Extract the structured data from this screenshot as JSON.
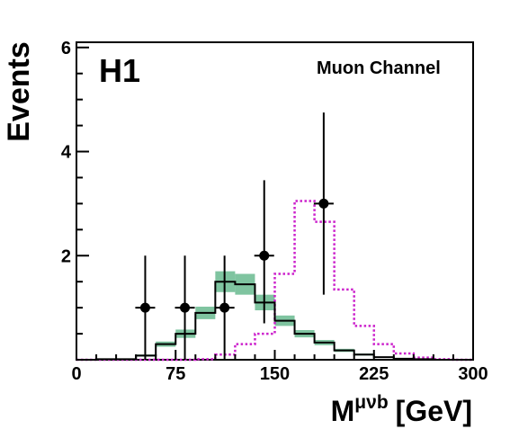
{
  "chart_data": {
    "type": "histogram",
    "experiment_label": "H1",
    "channel_label": "Muon Channel",
    "ylabel": "Events",
    "xlabel": {
      "main": "M",
      "superscript": "μνb",
      "unit": "[GeV]"
    },
    "xlim": [
      0,
      300
    ],
    "ylim": [
      0,
      6.1
    ],
    "x_ticks": [
      0,
      75,
      150,
      225,
      300
    ],
    "y_ticks": [
      2,
      4,
      6
    ],
    "bin_edges": [
      0,
      15,
      30,
      45,
      60,
      75,
      90,
      105,
      120,
      135,
      150,
      165,
      180,
      195,
      210,
      225,
      240,
      255,
      270,
      285,
      300
    ],
    "series": [
      {
        "kind": "sm_expectation",
        "style": "solid-black-histogram",
        "values": [
          0.0,
          0.01,
          0.01,
          0.08,
          0.3,
          0.5,
          0.9,
          1.5,
          1.45,
          1.1,
          0.75,
          0.5,
          0.33,
          0.18,
          0.1,
          0.05,
          0.02,
          0.01,
          0.0,
          0.0
        ],
        "error_band_color": "#7fc4a0",
        "error_band": [
          0.0,
          0.0,
          0.0,
          0.02,
          0.05,
          0.08,
          0.12,
          0.2,
          0.2,
          0.15,
          0.1,
          0.07,
          0.05,
          0.03,
          0.02,
          0.01,
          0.0,
          0.0,
          0.0,
          0.0
        ]
      },
      {
        "kind": "signal_hypothesis",
        "style": "dotted-magenta-histogram",
        "color": "#cc22cc",
        "values": [
          0.0,
          0.0,
          0.0,
          0.0,
          0.0,
          0.0,
          0.01,
          0.1,
          0.3,
          0.5,
          1.65,
          3.05,
          2.65,
          1.35,
          0.65,
          0.3,
          0.12,
          0.04,
          0.01,
          0.0
        ]
      },
      {
        "kind": "data",
        "style": "black-points-with-errors",
        "points": [
          {
            "x": 52,
            "y": 1,
            "xerr": 7.5,
            "y_low": 0,
            "y_high": 2.0
          },
          {
            "x": 82,
            "y": 1,
            "xerr": 7.5,
            "y_low": 0,
            "y_high": 2.0
          },
          {
            "x": 112,
            "y": 1,
            "xerr": 7.5,
            "y_low": 0,
            "y_high": 2.0
          },
          {
            "x": 142,
            "y": 2,
            "xerr": 7.5,
            "y_low": 0.7,
            "y_high": 3.45
          },
          {
            "x": 187,
            "y": 3,
            "xerr": 7.5,
            "y_low": 1.25,
            "y_high": 4.75
          }
        ]
      }
    ]
  }
}
